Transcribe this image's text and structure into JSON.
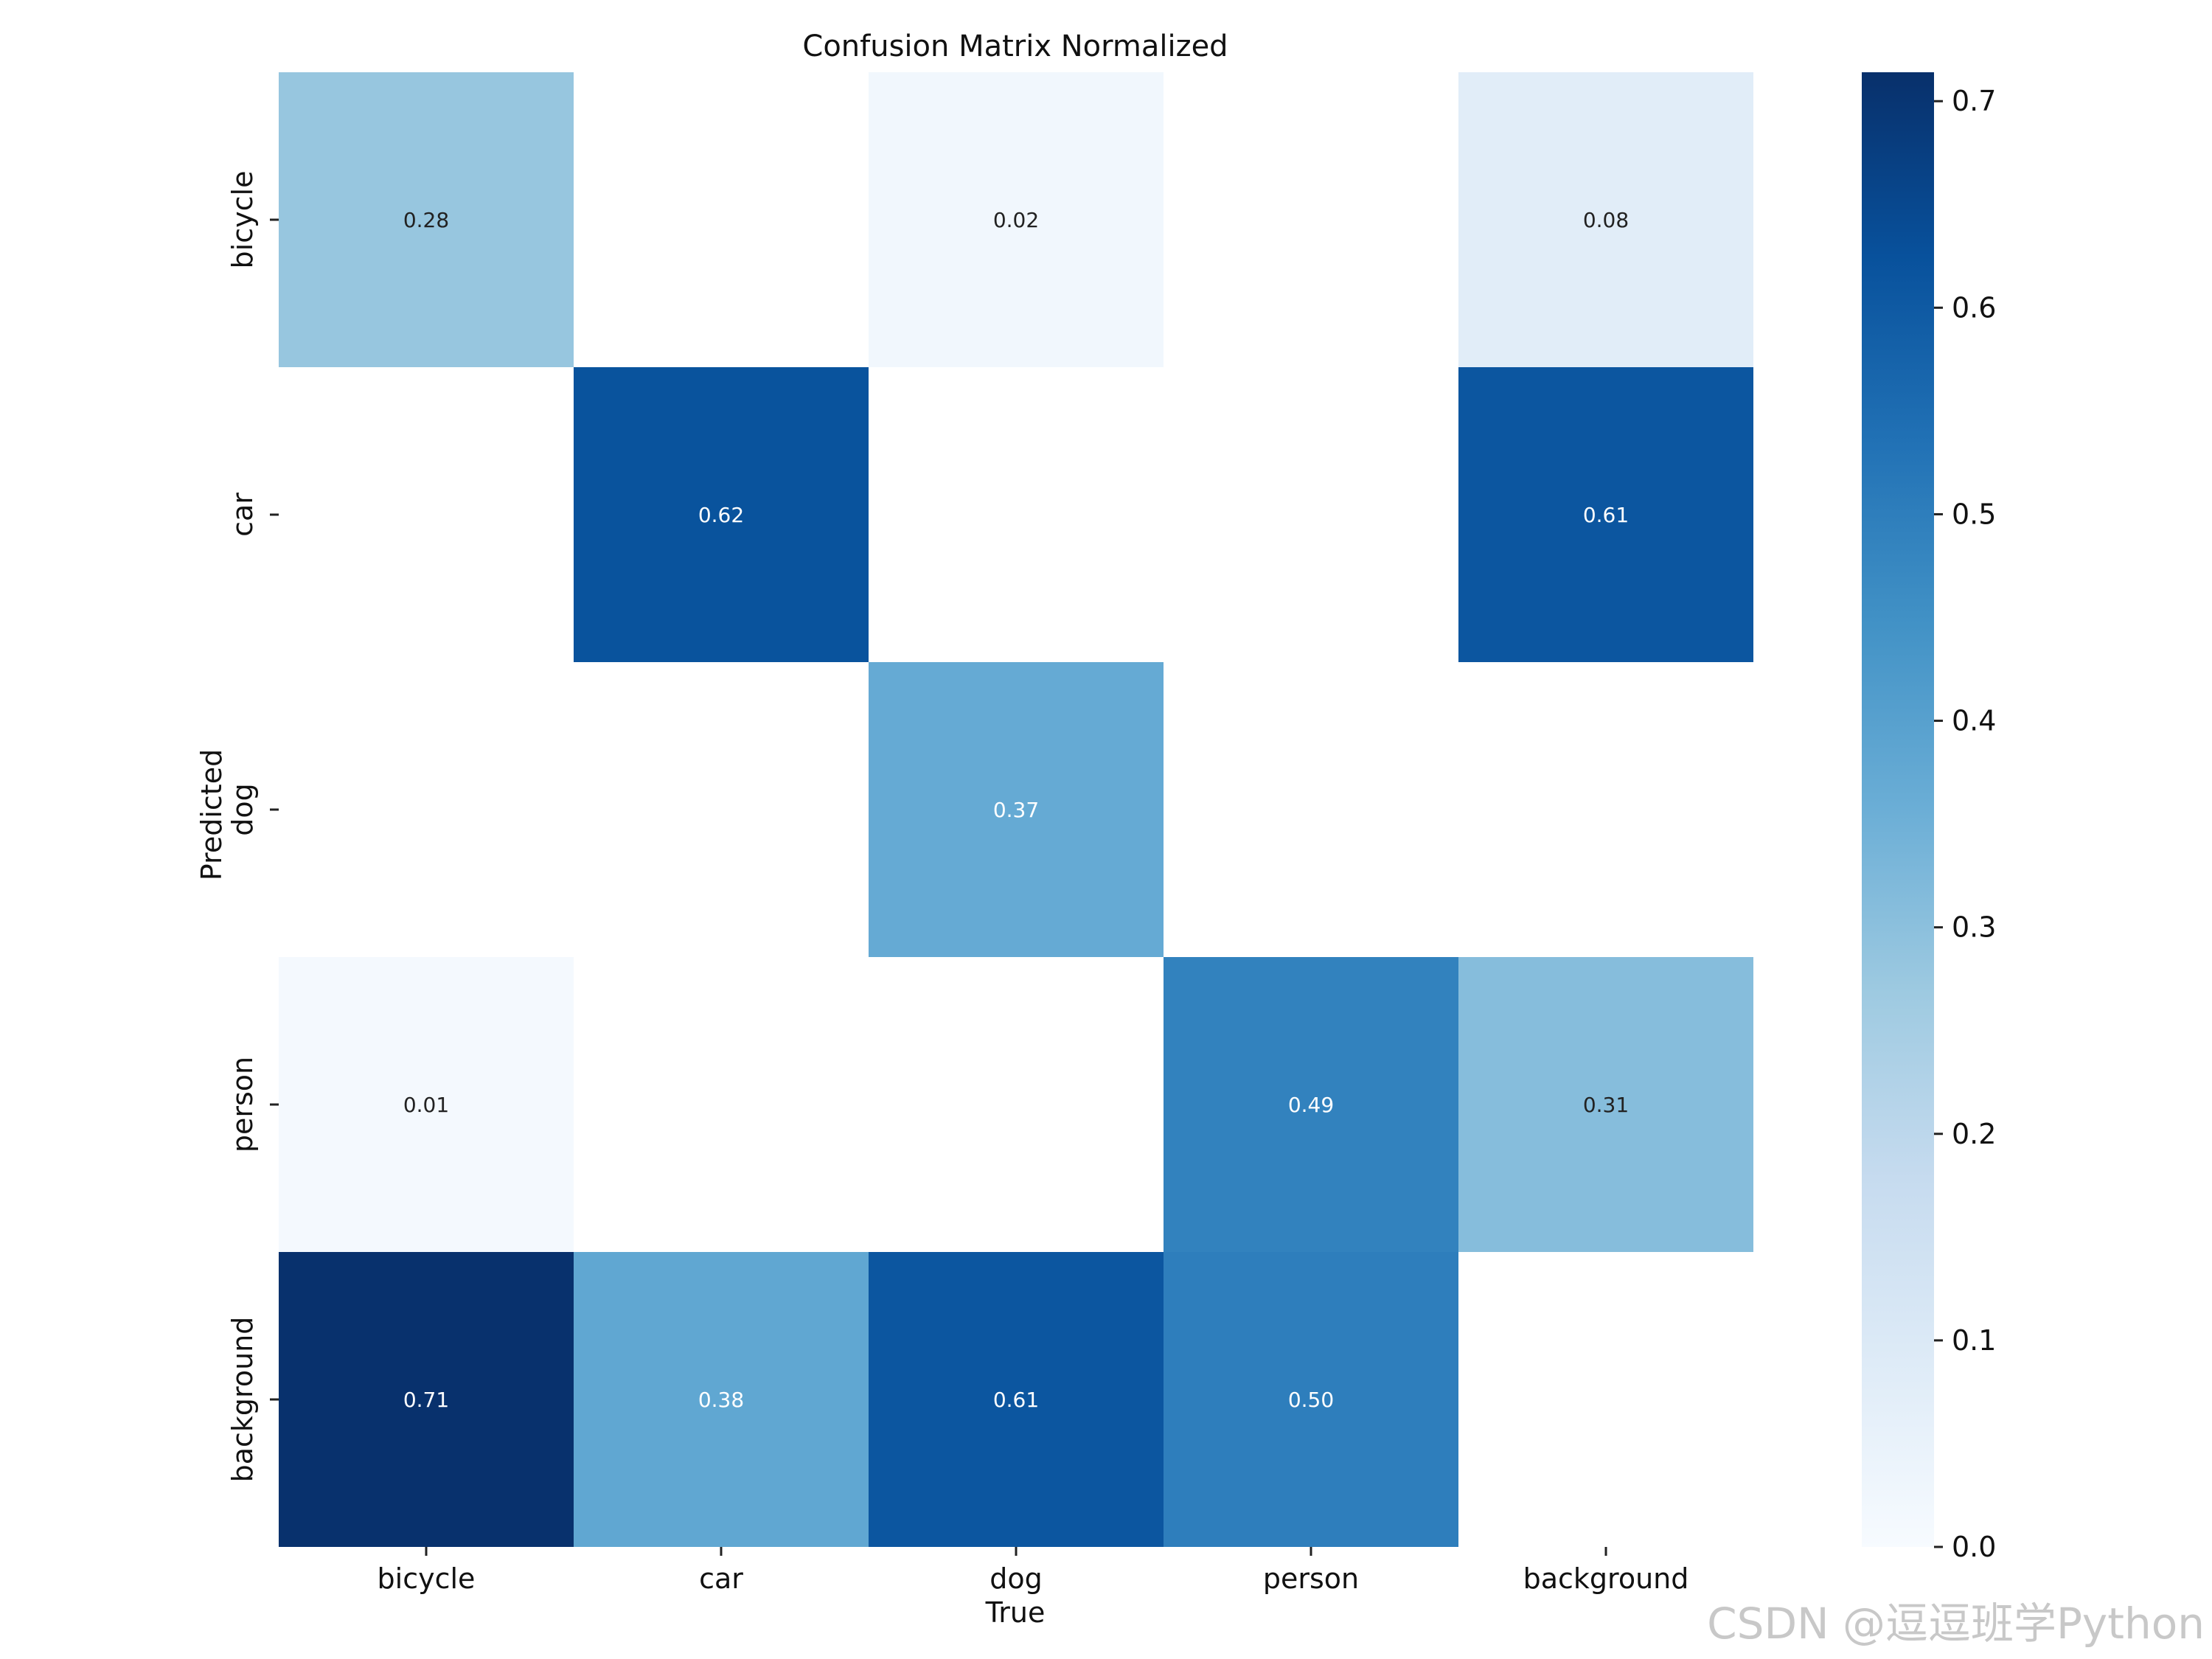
{
  "chart_data": {
    "type": "heatmap",
    "title": "Confusion Matrix Normalized",
    "xlabel": "True",
    "ylabel": "Predicted",
    "x_categories": [
      "bicycle",
      "car",
      "dog",
      "person",
      "background"
    ],
    "y_categories": [
      "bicycle",
      "car",
      "dog",
      "person",
      "background"
    ],
    "values": [
      [
        0.28,
        null,
        0.02,
        null,
        0.08
      ],
      [
        null,
        0.62,
        null,
        null,
        0.61
      ],
      [
        null,
        null,
        0.37,
        null,
        null
      ],
      [
        0.01,
        null,
        null,
        0.49,
        0.31
      ],
      [
        0.71,
        0.38,
        0.61,
        0.5,
        null
      ]
    ],
    "cell_labels": [
      [
        "0.28",
        "",
        "0.02",
        "",
        "0.08"
      ],
      [
        "",
        "0.62",
        "",
        "",
        "0.61"
      ],
      [
        "",
        "",
        "0.37",
        "",
        ""
      ],
      [
        "0.01",
        "",
        "",
        "0.49",
        "0.31"
      ],
      [
        "0.71",
        "0.38",
        "0.61",
        "0.50",
        ""
      ]
    ],
    "colormap": "Blues",
    "colorbar": {
      "range": [
        0.0,
        0.714
      ],
      "ticks": [
        0.0,
        0.1,
        0.2,
        0.3,
        0.4,
        0.5,
        0.6,
        0.7
      ],
      "tick_labels": [
        "0.0",
        "0.1",
        "0.2",
        "0.3",
        "0.4",
        "0.5",
        "0.6",
        "0.7"
      ]
    },
    "colors": {
      "blues": [
        "#f7fbff",
        "#deebf7",
        "#c6dbef",
        "#9ecae1",
        "#6baed6",
        "#4292c6",
        "#2171b5",
        "#08519c",
        "#08306b"
      ],
      "text_dark": "#222222",
      "text_light": "#ffffff"
    }
  },
  "watermark": "CSDN @逗逗班学Python"
}
